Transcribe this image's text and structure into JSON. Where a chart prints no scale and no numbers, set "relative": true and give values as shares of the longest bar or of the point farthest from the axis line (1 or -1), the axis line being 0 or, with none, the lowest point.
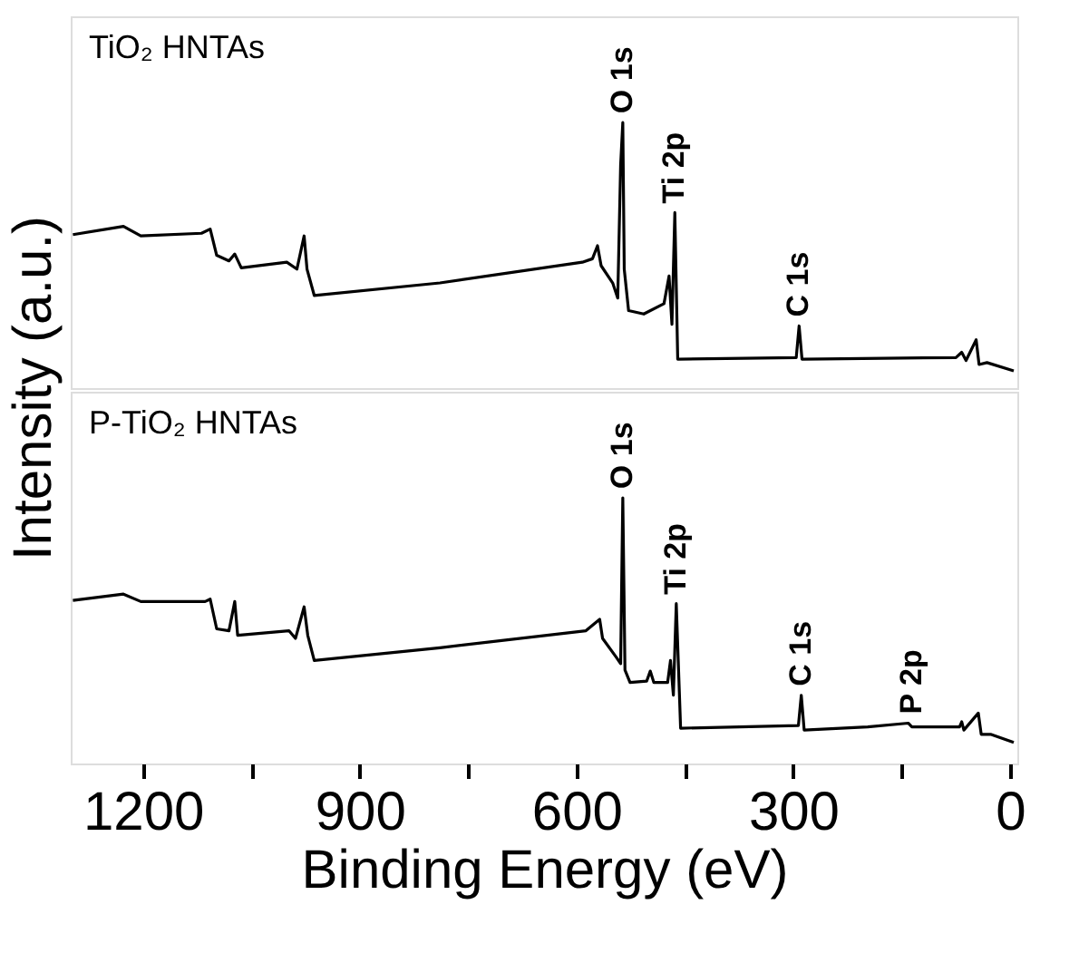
{
  "chart_data": [
    {
      "type": "line",
      "title": "TiO₂ HNTAs",
      "ylabel": "Intensity (a.u.)",
      "relative": true,
      "xlim": [
        1300,
        -10
      ],
      "tick_labels": false,
      "series": [
        {
          "color": "#000000",
          "x": [
            1297,
            1227,
            1203,
            1119,
            1107,
            1098,
            1081,
            1073,
            1064,
            1001,
            987,
            977,
            973,
            963,
            789,
            592,
            578,
            571,
            566,
            550,
            543,
            539,
            536,
            534,
            528,
            507,
            479,
            472,
            468,
            464,
            460,
            296,
            292,
            288,
            75,
            67,
            61,
            47,
            43,
            32,
            -5
          ],
          "values": [
            0.578,
            0.609,
            0.573,
            0.583,
            0.599,
            0.5,
            0.479,
            0.505,
            0.453,
            0.474,
            0.448,
            0.573,
            0.448,
            0.349,
            0.396,
            0.474,
            0.487,
            0.536,
            0.461,
            0.396,
            0.339,
            0.839,
            1.0,
            0.448,
            0.292,
            0.279,
            0.318,
            0.422,
            0.24,
            0.661,
            0.109,
            0.115,
            0.234,
            0.109,
            0.115,
            0.135,
            0.104,
            0.182,
            0.089,
            0.096,
            0.065
          ]
        }
      ],
      "annotations": [
        {
          "text": "O 1s",
          "x": 536,
          "y": 1.0
        },
        {
          "text": "Ti 2p",
          "x": 464,
          "y": 0.661
        },
        {
          "text": "C 1s",
          "x": 292,
          "y": 0.234
        }
      ]
    },
    {
      "type": "line",
      "title": "P-TiO₂ HNTAs",
      "xlabel": "Binding Energy (eV)",
      "relative": true,
      "xlim": [
        1300,
        -10
      ],
      "tick_labels": "x",
      "xticks": [
        1200,
        {
          "value": 1050,
          "label": null
        },
        900,
        {
          "value": 750,
          "label": null
        },
        600,
        {
          "value": 450,
          "label": null
        },
        300,
        {
          "value": 150,
          "label": null
        },
        0
      ],
      "series": [
        {
          "color": "#000000",
          "x": [
            1297,
            1227,
            1203,
            1114,
            1107,
            1098,
            1081,
            1073,
            1069,
            998,
            989,
            977,
            972,
            963,
            789,
            587,
            568,
            564,
            545,
            539,
            536,
            533,
            526,
            503,
            498,
            493,
            474,
            470,
            466,
            462,
            456,
            293,
            289,
            285,
            197,
            141,
            136,
            70,
            67,
            64,
            44,
            40,
            27,
            -5
          ],
          "values": [
            0.614,
            0.638,
            0.61,
            0.61,
            0.619,
            0.507,
            0.5,
            0.61,
            0.483,
            0.5,
            0.471,
            0.59,
            0.483,
            0.388,
            0.436,
            0.5,
            0.543,
            0.471,
            0.4,
            0.376,
            1.0,
            0.352,
            0.305,
            0.31,
            0.348,
            0.305,
            0.305,
            0.388,
            0.257,
            0.602,
            0.133,
            0.143,
            0.257,
            0.126,
            0.138,
            0.152,
            0.138,
            0.138,
            0.157,
            0.126,
            0.19,
            0.11,
            0.11,
            0.079
          ]
        }
      ],
      "annotations": [
        {
          "text": "O 1s",
          "x": 536,
          "y": 1.0
        },
        {
          "text": "Ti 2p",
          "x": 462,
          "y": 0.602
        },
        {
          "text": "C 1s",
          "x": 289,
          "y": 0.257
        },
        {
          "text": "P 2p",
          "x": 136,
          "y": 0.152
        }
      ]
    }
  ]
}
